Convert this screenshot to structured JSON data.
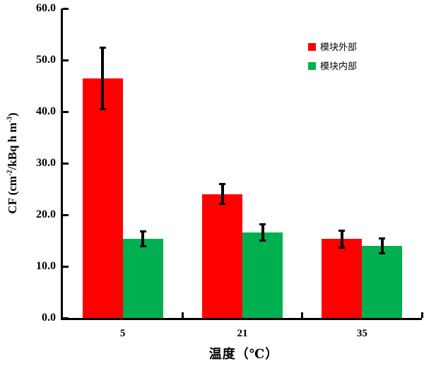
{
  "chart_data": {
    "type": "bar",
    "title": "",
    "categories": [
      "5",
      "21",
      "35"
    ],
    "series": [
      {
        "name": "模块外部",
        "color": "#FF0000",
        "values": [
          46.4,
          24.0,
          15.3
        ],
        "errors": [
          6.0,
          2.0,
          1.7
        ]
      },
      {
        "name": "模块内部",
        "color": "#00B050",
        "values": [
          15.4,
          16.6,
          14.0
        ],
        "errors": [
          1.5,
          1.6,
          1.5
        ]
      }
    ],
    "xlabel": "温度（℃）",
    "ylabel": "CF (cm⁻²/kBq h m⁻³)",
    "ylabel_parts": {
      "pre": "CF (cm",
      "sup1": "-2",
      "mid": "/kBq h m",
      "sup2": "-3",
      "post": ")"
    },
    "ylim": [
      0,
      60
    ],
    "yticks": [
      0,
      10,
      20,
      30,
      40,
      50,
      60
    ],
    "ytick_decimals": 1,
    "grid": false,
    "legend_position": "upper-right",
    "axis_color": "#000000",
    "background": "#FFFFFF",
    "error_bars": true
  }
}
